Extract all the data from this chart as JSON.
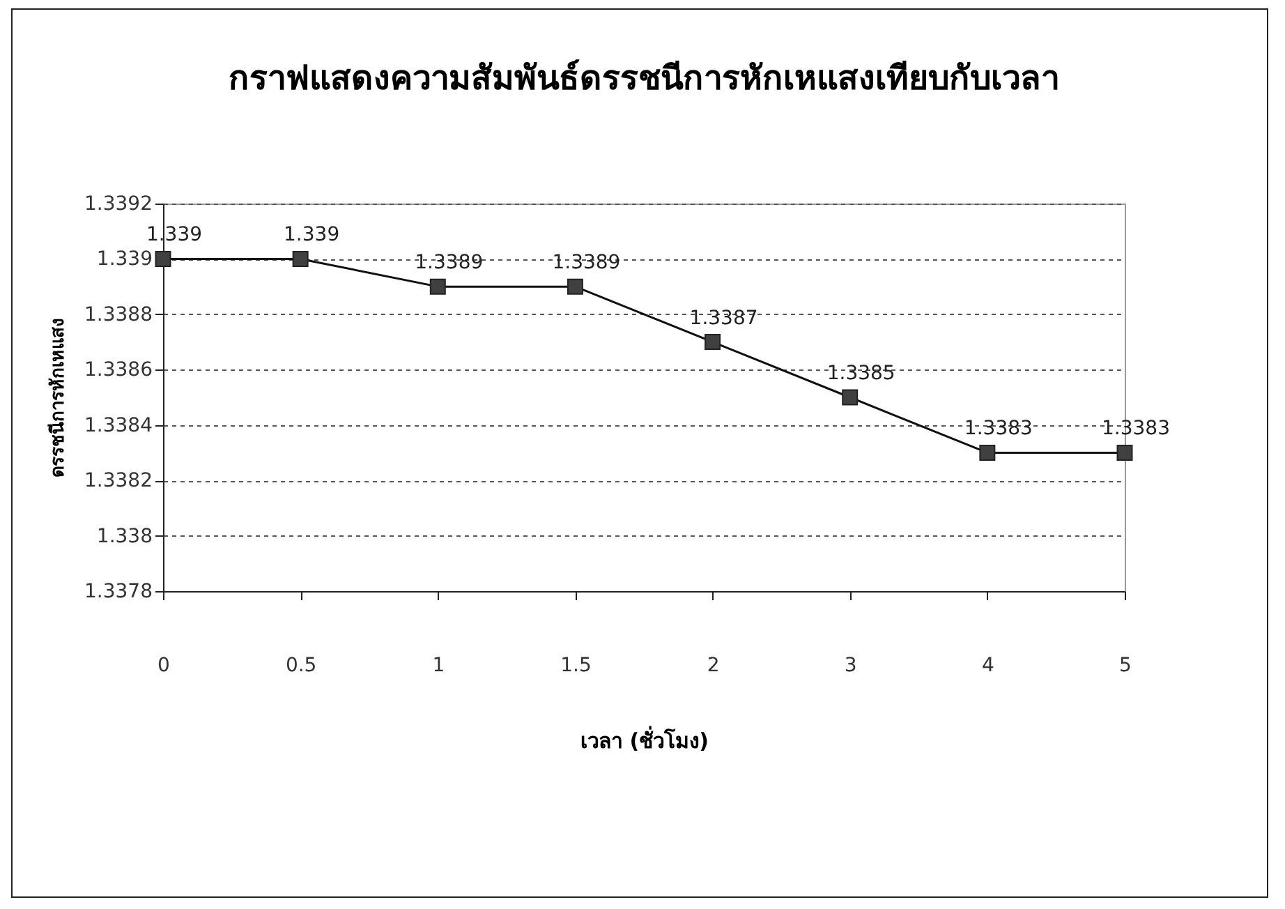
{
  "chart_data": {
    "type": "line",
    "title": "กราฟแสดงความสัมพันธ์ดรรชนีการหักเหแสงเทียบกับเวลา",
    "xlabel": "เวลา (ชั่วโมง)",
    "ylabel": "ดรรชนีการหักเหแสง",
    "categories": [
      "0",
      "0.5",
      "1",
      "1.5",
      "2",
      "3",
      "4",
      "5"
    ],
    "series": [
      {
        "color": "#404040",
        "values": [
          1.339,
          1.339,
          1.3389,
          1.3389,
          1.3387,
          1.3385,
          1.3383,
          1.3383
        ]
      }
    ],
    "ylim": [
      1.3378,
      1.3392
    ],
    "yticks": [
      1.3378,
      1.338,
      1.3382,
      1.3384,
      1.3386,
      1.3388,
      1.339,
      1.3392
    ],
    "grid": "y",
    "marker": "square",
    "line_style": "solid",
    "data_labels": true
  }
}
